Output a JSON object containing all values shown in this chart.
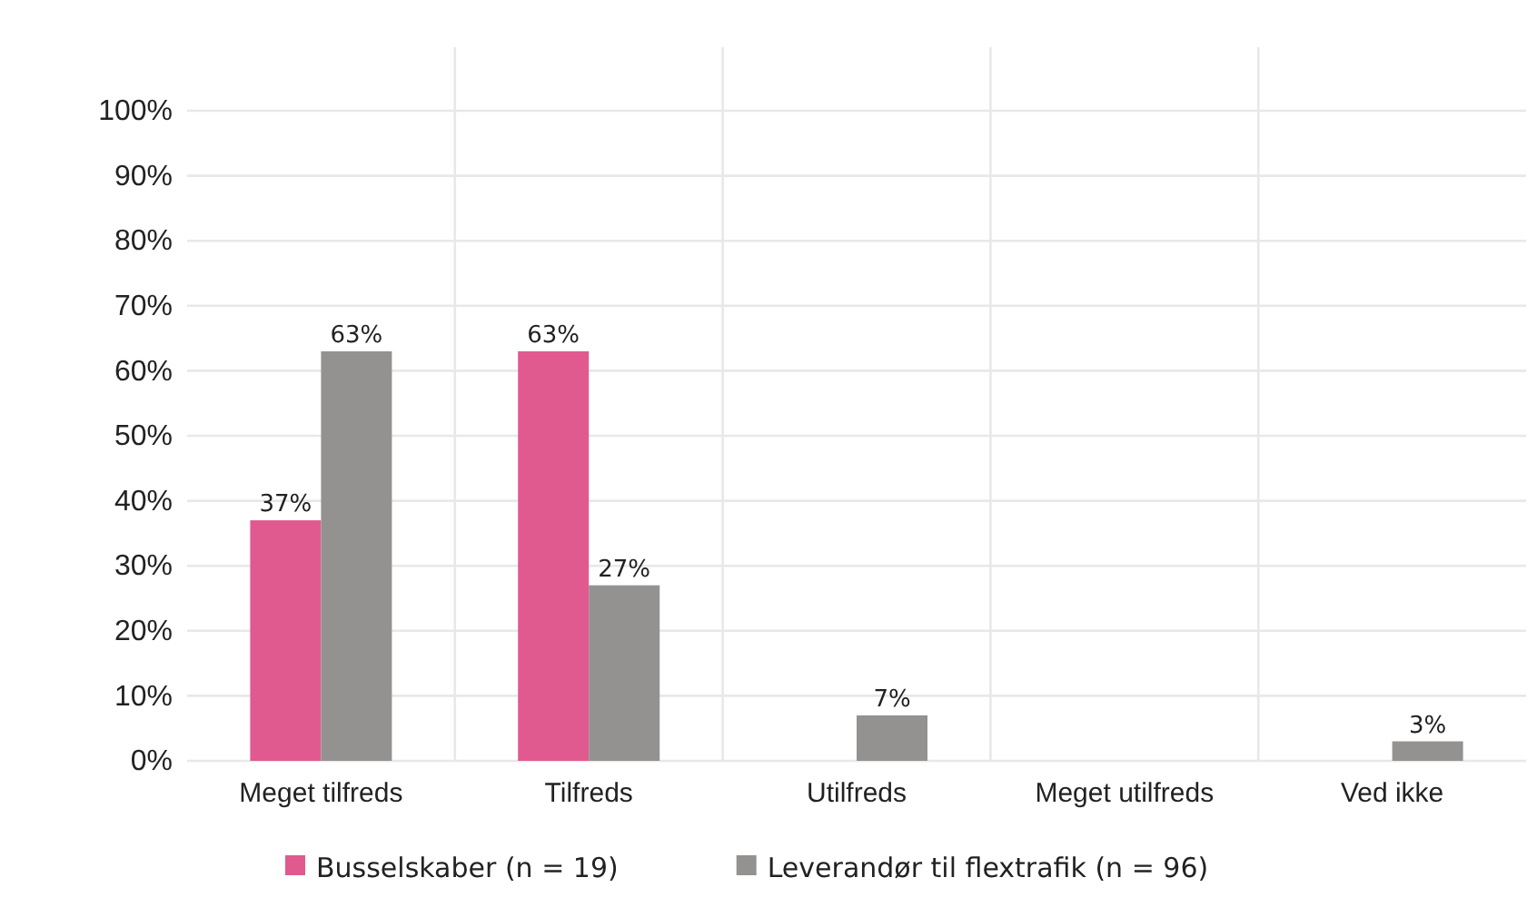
{
  "chart_data": {
    "type": "bar",
    "categories": [
      "Meget tilfreds",
      "Tilfreds",
      "Utilfreds",
      "Meget utilfreds",
      "Ved ikke"
    ],
    "series": [
      {
        "name": "Busselskaber (n = 19)",
        "color": "#e05a8f",
        "values": [
          37,
          63,
          null,
          null,
          null
        ]
      },
      {
        "name": "Leverandør til flextrafik (n = 96)",
        "color": "#939291",
        "values": [
          63,
          27,
          7,
          null,
          3
        ]
      }
    ],
    "ylim": [
      0,
      100
    ],
    "yticks": [
      {
        "value": 0,
        "label": "0%"
      },
      {
        "value": 10,
        "label": "10%"
      },
      {
        "value": 20,
        "label": "20%"
      },
      {
        "value": 30,
        "label": "30%"
      },
      {
        "value": 40,
        "label": "40%"
      },
      {
        "value": 50,
        "label": "50%"
      },
      {
        "value": 60,
        "label": "60%"
      },
      {
        "value": 70,
        "label": "70%"
      },
      {
        "value": 80,
        "label": "80%"
      },
      {
        "value": 90,
        "label": "90%"
      },
      {
        "value": 100,
        "label": "100%"
      }
    ],
    "value_labels": [
      [
        "37%",
        "63%",
        null,
        null,
        null
      ],
      [
        "63%",
        "27%",
        "7%",
        null,
        "3%"
      ]
    ],
    "grid": true,
    "legend": "bottom"
  }
}
